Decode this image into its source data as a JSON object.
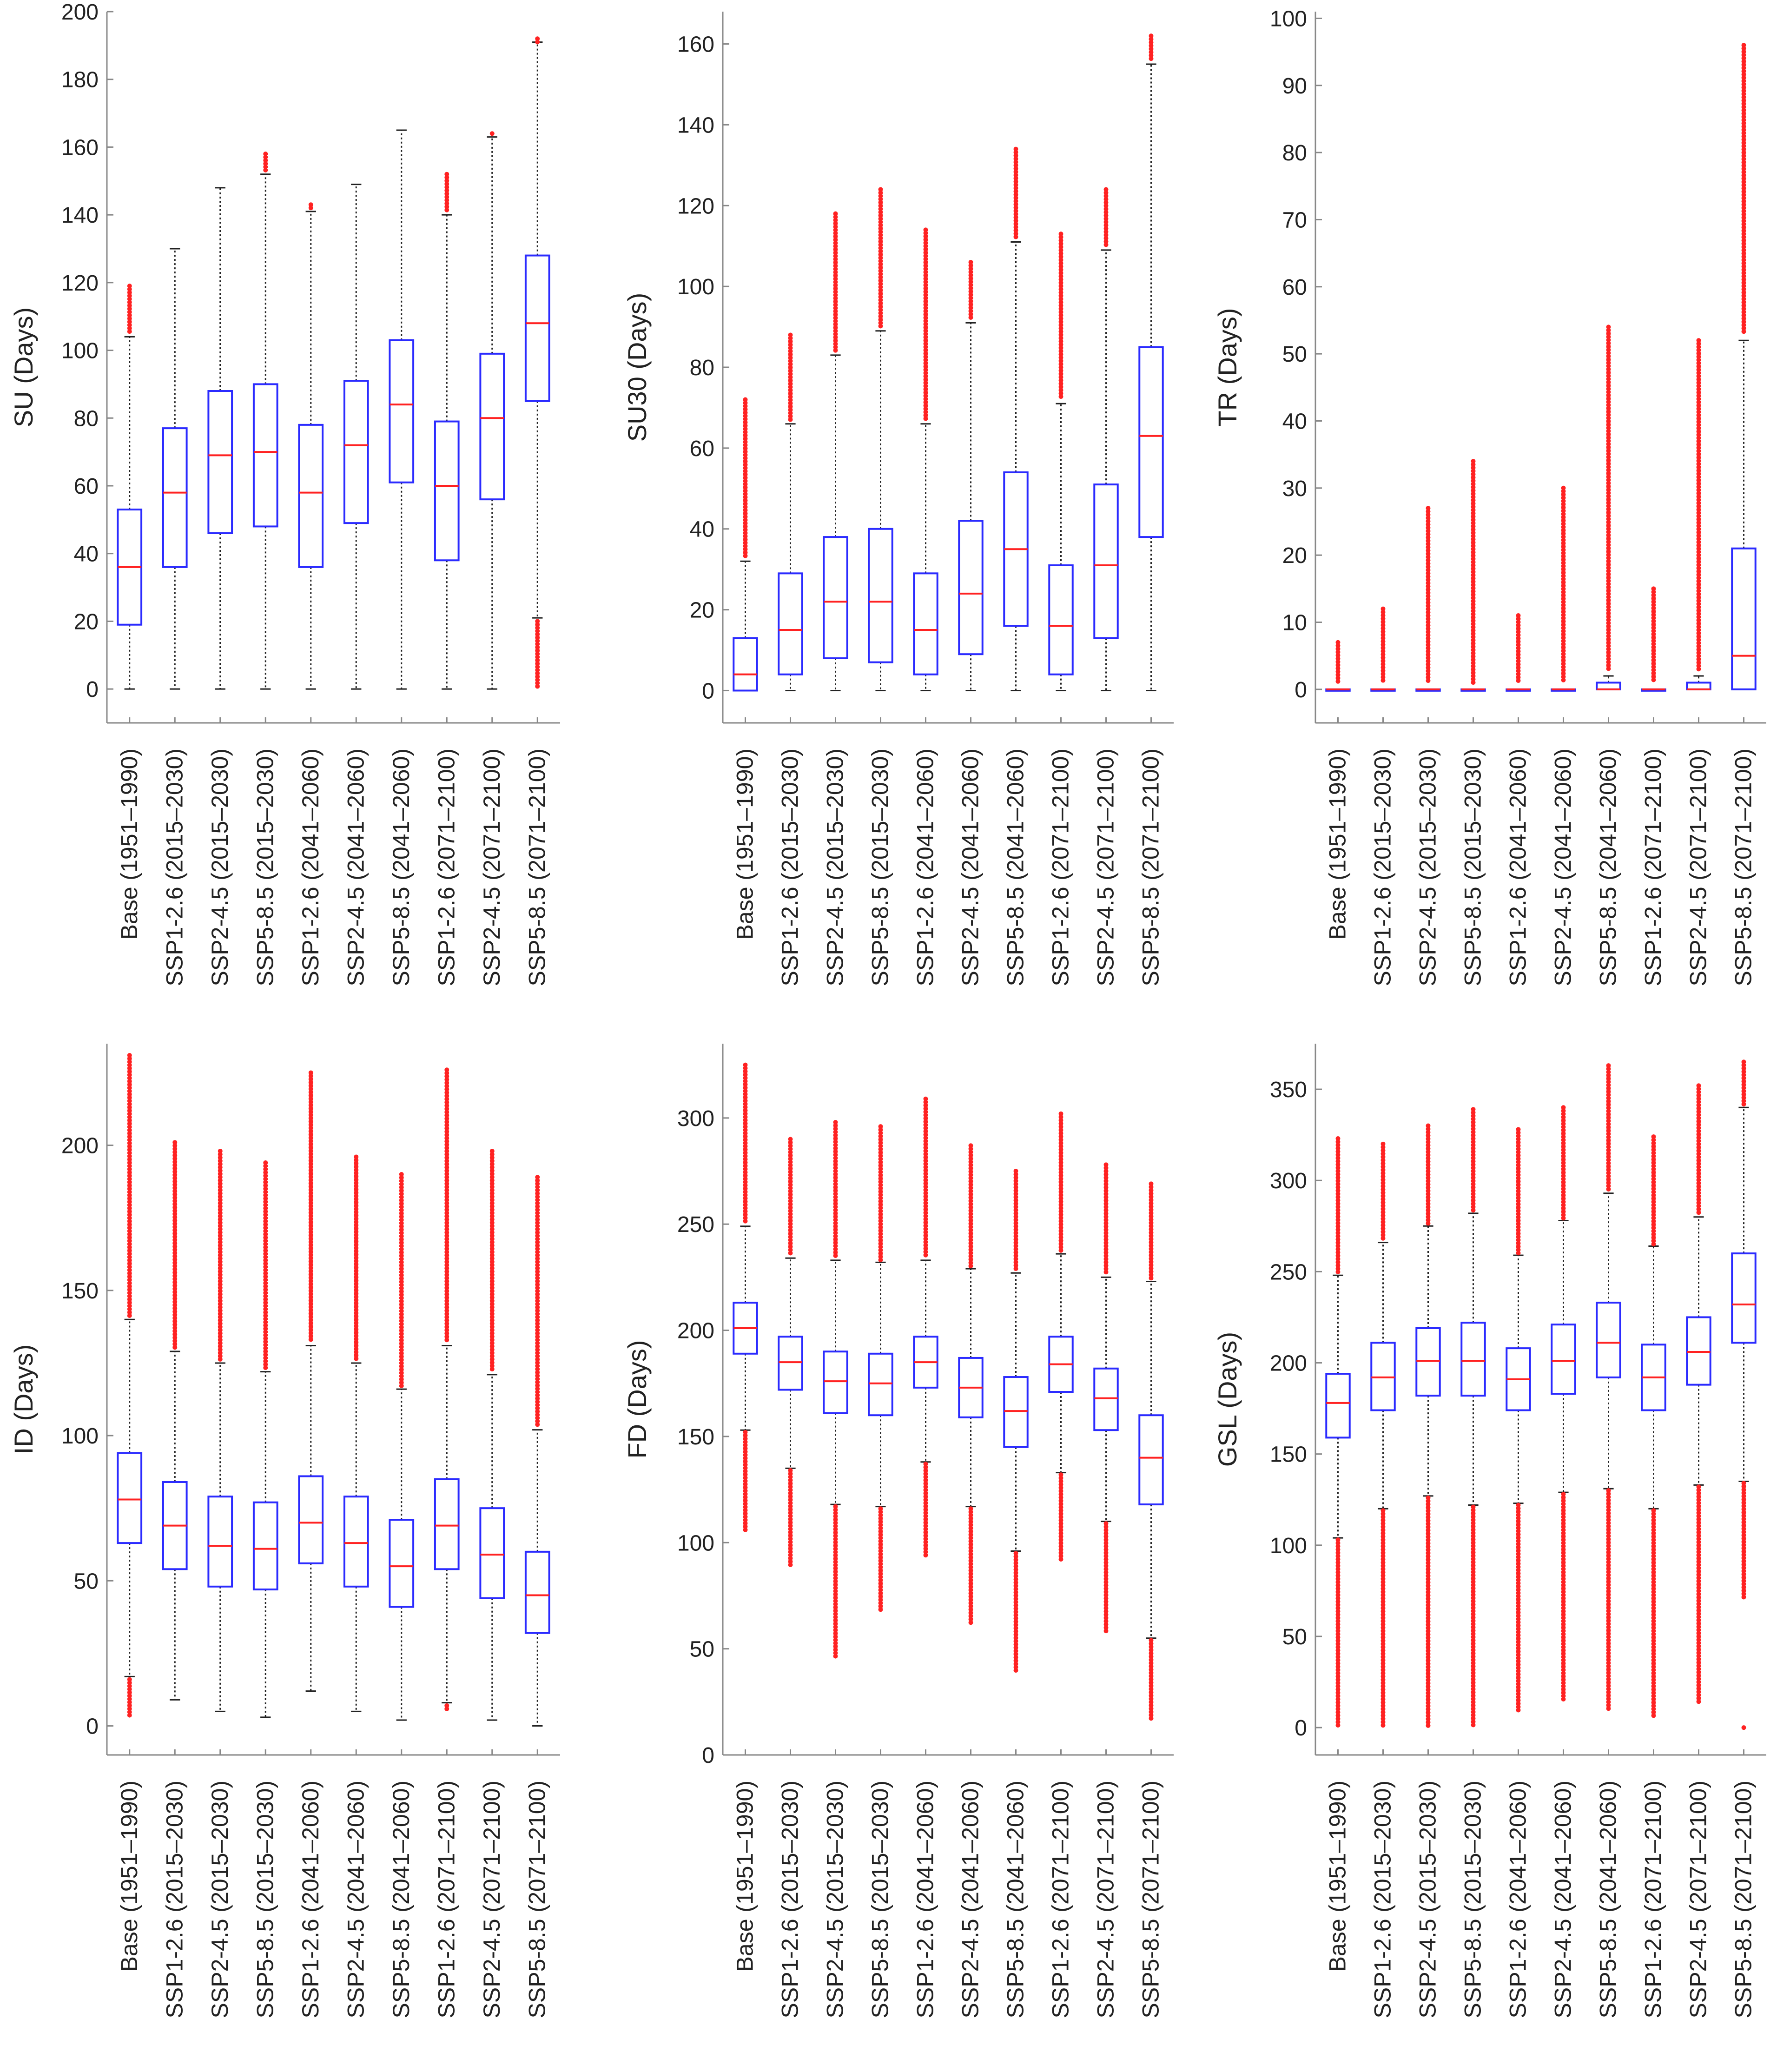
{
  "figure": {
    "categories": [
      "Base (1951–1990)",
      "SSP1-2.6 (2015–2030)",
      "SSP2-4.5 (2015–2030)",
      "SSP5-8.5 (2015–2030)",
      "SSP1-2.6 (2041–2060)",
      "SSP2-4.5 (2041–2060)",
      "SSP5-8.5 (2041–2060)",
      "SSP1-2.6 (2071–2100)",
      "SSP2-4.5 (2071–2100)",
      "SSP5-8.5 (2071–2100)"
    ],
    "colors": {
      "box": "#2b2bff",
      "median": "#ff2222",
      "outlier": "#ff2222",
      "whisker": "#222222",
      "axis": "#888888"
    }
  },
  "chart_data": [
    {
      "type": "box",
      "title": "",
      "ylabel": "SU (Days)",
      "ylim": [
        -10,
        200
      ],
      "yticks": [
        0,
        20,
        40,
        60,
        80,
        100,
        120,
        140,
        160,
        180,
        200
      ],
      "series": [
        {
          "q1": 19,
          "median": 36,
          "q3": 53,
          "lower": 0,
          "upper": 104,
          "outliers": [
            [
              105,
              119
            ]
          ]
        },
        {
          "q1": 36,
          "median": 58,
          "q3": 77,
          "lower": 0,
          "upper": 130,
          "outliers": []
        },
        {
          "q1": 46,
          "median": 69,
          "q3": 88,
          "lower": 0,
          "upper": 148,
          "outliers": []
        },
        {
          "q1": 48,
          "median": 70,
          "q3": 90,
          "lower": 0,
          "upper": 152,
          "outliers": [
            [
              153,
              158
            ]
          ]
        },
        {
          "q1": 36,
          "median": 58,
          "q3": 78,
          "lower": 0,
          "upper": 141,
          "outliers": [
            [
              142,
              143
            ]
          ]
        },
        {
          "q1": 49,
          "median": 72,
          "q3": 91,
          "lower": 0,
          "upper": 149,
          "outliers": []
        },
        {
          "q1": 61,
          "median": 84,
          "q3": 103,
          "lower": 0,
          "upper": 165,
          "outliers": []
        },
        {
          "q1": 38,
          "median": 60,
          "q3": 79,
          "lower": 0,
          "upper": 140,
          "outliers": [
            [
              141,
              152
            ]
          ]
        },
        {
          "q1": 56,
          "median": 80,
          "q3": 99,
          "lower": 0,
          "upper": 163,
          "outliers": [
            [
              164,
              164
            ]
          ]
        },
        {
          "q1": 85,
          "median": 108,
          "q3": 128,
          "lower": 21,
          "upper": 191,
          "outliers": [
            [
              0,
              20
            ],
            [
              191,
              192
            ]
          ]
        }
      ]
    },
    {
      "type": "box",
      "title": "",
      "ylabel": "SU30 (Days)",
      "ylim": [
        -8,
        168
      ],
      "yticks": [
        0,
        20,
        40,
        60,
        80,
        100,
        120,
        140,
        160
      ],
      "series": [
        {
          "q1": 0,
          "median": 4,
          "q3": 13,
          "lower": 0,
          "upper": 32,
          "outliers": [
            [
              33,
              72
            ]
          ]
        },
        {
          "q1": 4,
          "median": 15,
          "q3": 29,
          "lower": 0,
          "upper": 66,
          "outliers": [
            [
              67,
              88
            ]
          ]
        },
        {
          "q1": 8,
          "median": 22,
          "q3": 38,
          "lower": 0,
          "upper": 83,
          "outliers": [
            [
              84,
              118
            ]
          ]
        },
        {
          "q1": 7,
          "median": 22,
          "q3": 40,
          "lower": 0,
          "upper": 89,
          "outliers": [
            [
              90,
              124
            ]
          ]
        },
        {
          "q1": 4,
          "median": 15,
          "q3": 29,
          "lower": 0,
          "upper": 66,
          "outliers": [
            [
              67,
              114
            ]
          ]
        },
        {
          "q1": 9,
          "median": 24,
          "q3": 42,
          "lower": 0,
          "upper": 91,
          "outliers": [
            [
              92,
              106
            ]
          ]
        },
        {
          "q1": 16,
          "median": 35,
          "q3": 54,
          "lower": 0,
          "upper": 111,
          "outliers": [
            [
              112,
              134
            ]
          ]
        },
        {
          "q1": 4,
          "median": 16,
          "q3": 31,
          "lower": 0,
          "upper": 71,
          "outliers": [
            [
              72,
              113
            ]
          ]
        },
        {
          "q1": 13,
          "median": 31,
          "q3": 51,
          "lower": 0,
          "upper": 109,
          "outliers": [
            [
              110,
              124
            ]
          ]
        },
        {
          "q1": 38,
          "median": 63,
          "q3": 85,
          "lower": 0,
          "upper": 155,
          "outliers": [
            [
              156,
              162
            ]
          ]
        }
      ]
    },
    {
      "type": "box",
      "title": "",
      "ylabel": "TR (Days)",
      "ylim": [
        -5,
        101
      ],
      "yticks": [
        0,
        10,
        20,
        30,
        40,
        50,
        60,
        70,
        80,
        90,
        100
      ],
      "series": [
        {
          "q1": 0,
          "median": 0,
          "q3": 0,
          "lower": 0,
          "upper": 0,
          "outliers": [
            [
              1,
              7
            ]
          ]
        },
        {
          "q1": 0,
          "median": 0,
          "q3": 0,
          "lower": 0,
          "upper": 0,
          "outliers": [
            [
              1,
              12
            ]
          ]
        },
        {
          "q1": 0,
          "median": 0,
          "q3": 0,
          "lower": 0,
          "upper": 0,
          "outliers": [
            [
              1,
              27
            ]
          ]
        },
        {
          "q1": 0,
          "median": 0,
          "q3": 0,
          "lower": 0,
          "upper": 0,
          "outliers": [
            [
              1,
              34
            ]
          ]
        },
        {
          "q1": 0,
          "median": 0,
          "q3": 0,
          "lower": 0,
          "upper": 0,
          "outliers": [
            [
              1,
              11
            ]
          ]
        },
        {
          "q1": 0,
          "median": 0,
          "q3": 0,
          "lower": 0,
          "upper": 0,
          "outliers": [
            [
              1,
              30
            ]
          ]
        },
        {
          "q1": 0,
          "median": 0,
          "q3": 1,
          "lower": 0,
          "upper": 2,
          "outliers": [
            [
              3,
              54
            ]
          ]
        },
        {
          "q1": 0,
          "median": 0,
          "q3": 0,
          "lower": 0,
          "upper": 0,
          "outliers": [
            [
              1,
              15
            ]
          ]
        },
        {
          "q1": 0,
          "median": 0,
          "q3": 1,
          "lower": 0,
          "upper": 2,
          "outliers": [
            [
              3,
              52
            ]
          ]
        },
        {
          "q1": 0,
          "median": 5,
          "q3": 21,
          "lower": 0,
          "upper": 52,
          "outliers": [
            [
              53,
              96
            ]
          ]
        }
      ]
    },
    {
      "type": "box",
      "title": "",
      "ylabel": "ID (Days)",
      "ylim": [
        -10,
        235
      ],
      "yticks": [
        0,
        50,
        100,
        150,
        200
      ],
      "series": [
        {
          "q1": 63,
          "median": 78,
          "q3": 94,
          "lower": 17,
          "upper": 140,
          "outliers": [
            [
              3,
              16
            ],
            [
              141,
              231
            ]
          ]
        },
        {
          "q1": 54,
          "median": 69,
          "q3": 84,
          "lower": 9,
          "upper": 129,
          "outliers": [
            [
              130,
              201
            ]
          ]
        },
        {
          "q1": 48,
          "median": 62,
          "q3": 79,
          "lower": 5,
          "upper": 125,
          "outliers": [
            [
              126,
              198
            ]
          ]
        },
        {
          "q1": 47,
          "median": 61,
          "q3": 77,
          "lower": 3,
          "upper": 122,
          "outliers": [
            [
              123,
              194
            ]
          ]
        },
        {
          "q1": 56,
          "median": 70,
          "q3": 86,
          "lower": 12,
          "upper": 131,
          "outliers": [
            [
              132,
              225
            ]
          ]
        },
        {
          "q1": 48,
          "median": 63,
          "q3": 79,
          "lower": 5,
          "upper": 125,
          "outliers": [
            [
              126,
              196
            ]
          ]
        },
        {
          "q1": 41,
          "median": 55,
          "q3": 71,
          "lower": 2,
          "upper": 116,
          "outliers": [
            [
              117,
              190
            ]
          ]
        },
        {
          "q1": 54,
          "median": 69,
          "q3": 85,
          "lower": 8,
          "upper": 131,
          "outliers": [
            [
              5,
              7
            ],
            [
              132,
              226
            ]
          ]
        },
        {
          "q1": 44,
          "median": 59,
          "q3": 75,
          "lower": 2,
          "upper": 121,
          "outliers": [
            [
              122,
              198
            ]
          ]
        },
        {
          "q1": 32,
          "median": 45,
          "q3": 60,
          "lower": 0,
          "upper": 102,
          "outliers": [
            [
              103,
              189
            ]
          ]
        }
      ]
    },
    {
      "type": "box",
      "title": "",
      "ylabel": "FD (Days)",
      "ylim": [
        0,
        335
      ],
      "yticks": [
        0,
        50,
        100,
        150,
        200,
        250,
        300
      ],
      "series": [
        {
          "q1": 189,
          "median": 201,
          "q3": 213,
          "lower": 153,
          "upper": 249,
          "outliers": [
            [
              106,
              152
            ],
            [
              250,
              325
            ]
          ]
        },
        {
          "q1": 172,
          "median": 185,
          "q3": 197,
          "lower": 135,
          "upper": 234,
          "outliers": [
            [
              89,
              134
            ],
            [
              235,
              290
            ]
          ]
        },
        {
          "q1": 161,
          "median": 176,
          "q3": 190,
          "lower": 118,
          "upper": 233,
          "outliers": [
            [
              46,
              117
            ],
            [
              234,
              298
            ]
          ]
        },
        {
          "q1": 160,
          "median": 175,
          "q3": 189,
          "lower": 117,
          "upper": 232,
          "outliers": [
            [
              68,
              116
            ],
            [
              233,
              296
            ]
          ]
        },
        {
          "q1": 173,
          "median": 185,
          "q3": 197,
          "lower": 138,
          "upper": 233,
          "outliers": [
            [
              94,
              137
            ],
            [
              234,
              309
            ]
          ]
        },
        {
          "q1": 159,
          "median": 173,
          "q3": 187,
          "lower": 117,
          "upper": 229,
          "outliers": [
            [
              62,
              116
            ],
            [
              230,
              287
            ]
          ]
        },
        {
          "q1": 145,
          "median": 162,
          "q3": 178,
          "lower": 96,
          "upper": 227,
          "outliers": [
            [
              39,
              95
            ],
            [
              228,
              275
            ]
          ]
        },
        {
          "q1": 171,
          "median": 184,
          "q3": 197,
          "lower": 133,
          "upper": 236,
          "outliers": [
            [
              92,
              132
            ],
            [
              237,
              302
            ]
          ]
        },
        {
          "q1": 153,
          "median": 168,
          "q3": 182,
          "lower": 110,
          "upper": 225,
          "outliers": [
            [
              57,
              109
            ],
            [
              226,
              278
            ]
          ]
        },
        {
          "q1": 118,
          "median": 140,
          "q3": 160,
          "lower": 55,
          "upper": 223,
          "outliers": [
            [
              17,
              54
            ],
            [
              224,
              269
            ]
          ]
        }
      ]
    },
    {
      "type": "box",
      "title": "",
      "ylabel": "GSL (Days)",
      "ylim": [
        -15,
        375
      ],
      "yticks": [
        0,
        50,
        100,
        150,
        200,
        250,
        300,
        350
      ],
      "series": [
        {
          "q1": 159,
          "median": 178,
          "q3": 194,
          "lower": 104,
          "upper": 248,
          "outliers": [
            [
              0,
              103
            ],
            [
              249,
              323
            ]
          ]
        },
        {
          "q1": 174,
          "median": 192,
          "q3": 211,
          "lower": 120,
          "upper": 266,
          "outliers": [
            [
              0,
              119
            ],
            [
              267,
              320
            ]
          ]
        },
        {
          "q1": 182,
          "median": 201,
          "q3": 219,
          "lower": 127,
          "upper": 275,
          "outliers": [
            [
              0,
              126
            ],
            [
              276,
              330
            ]
          ]
        },
        {
          "q1": 182,
          "median": 201,
          "q3": 222,
          "lower": 122,
          "upper": 282,
          "outliers": [
            [
              0,
              121
            ],
            [
              283,
              339
            ]
          ]
        },
        {
          "q1": 174,
          "median": 191,
          "q3": 208,
          "lower": 123,
          "upper": 259,
          "outliers": [
            [
              8,
              122
            ],
            [
              260,
              328
            ]
          ]
        },
        {
          "q1": 183,
          "median": 201,
          "q3": 221,
          "lower": 129,
          "upper": 278,
          "outliers": [
            [
              14,
              128
            ],
            [
              279,
              340
            ]
          ]
        },
        {
          "q1": 192,
          "median": 211,
          "q3": 233,
          "lower": 131,
          "upper": 293,
          "outliers": [
            [
              10,
              130
            ],
            [
              294,
              363
            ]
          ]
        },
        {
          "q1": 174,
          "median": 192,
          "q3": 210,
          "lower": 120,
          "upper": 264,
          "outliers": [
            [
              5,
              119
            ],
            [
              265,
              324
            ]
          ]
        },
        {
          "q1": 188,
          "median": 206,
          "q3": 225,
          "lower": 133,
          "upper": 280,
          "outliers": [
            [
              13,
              132
            ],
            [
              281,
              352
            ]
          ]
        },
        {
          "q1": 211,
          "median": 232,
          "q3": 260,
          "lower": 135,
          "upper": 340,
          "outliers": [
            [
              0,
              0
            ],
            [
              70,
              134
            ],
            [
              341,
              365
            ]
          ]
        }
      ]
    }
  ]
}
